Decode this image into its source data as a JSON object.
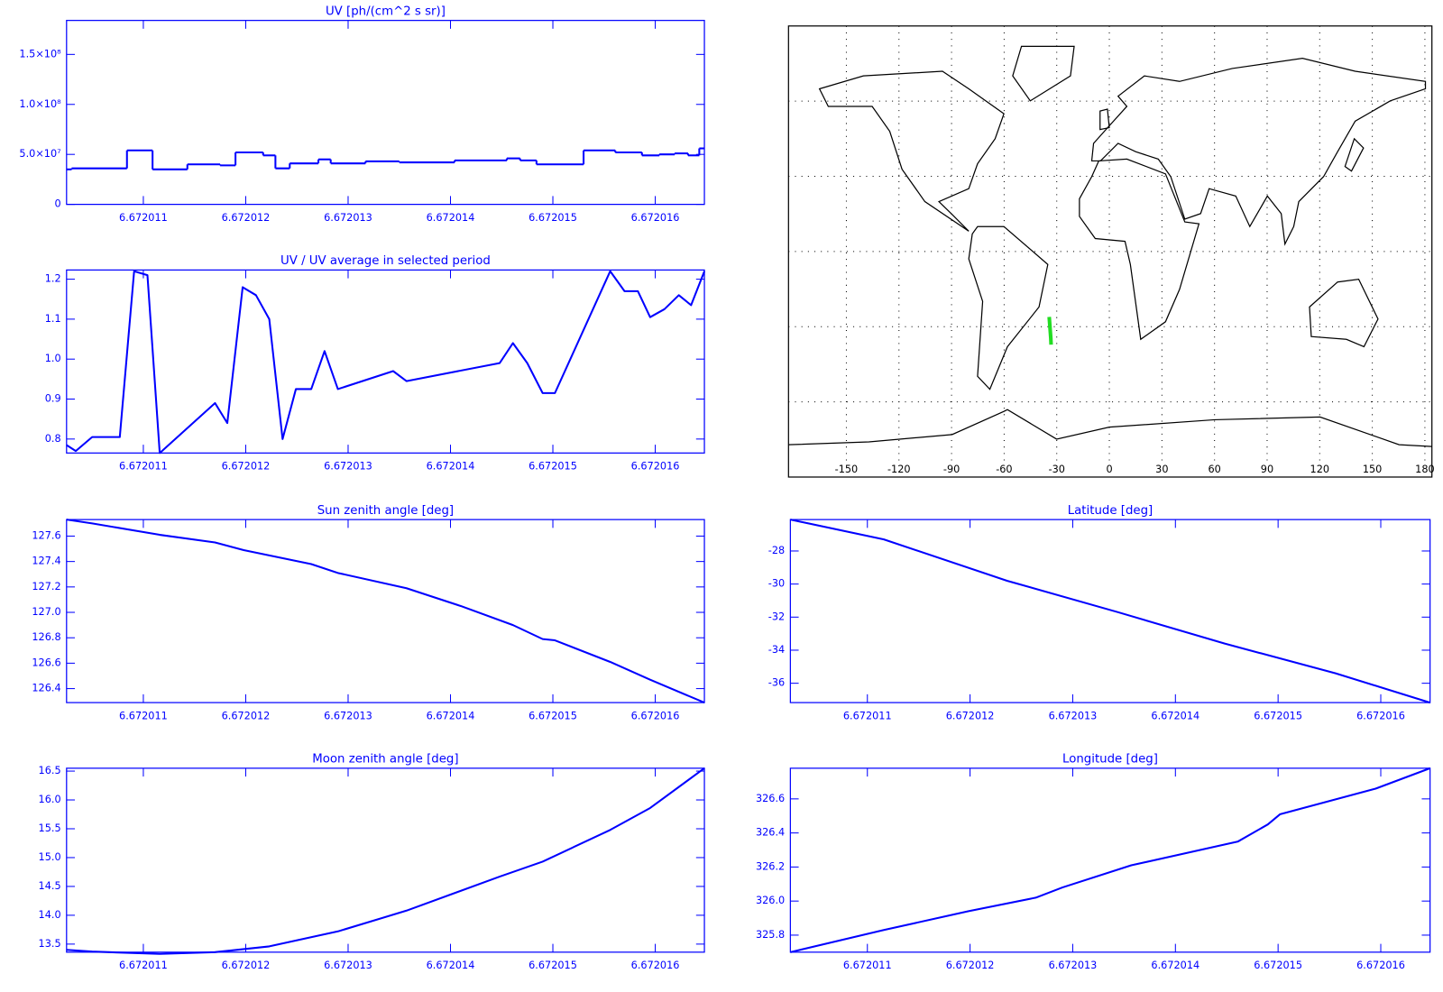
{
  "chart_data": [
    {
      "type": "step",
      "title": "UV [ph/(cm^2 s sr)]",
      "color": "#0000ff",
      "axis_color": "#0000ff",
      "x": [
        6.67201025,
        6.6720103,
        6.67201084,
        6.67201109,
        6.67201143,
        6.67201175,
        6.6720119,
        6.67201217,
        6.67201229,
        6.67201243,
        6.67201271,
        6.67201283,
        6.67201317,
        6.6720135,
        6.67201404,
        6.67201455,
        6.67201468,
        6.67201484,
        6.6720153,
        6.67201561,
        6.67201587,
        6.67201604,
        6.67201619,
        6.67201632,
        6.67201643
      ],
      "values": [
        35000000,
        36000000,
        54000000,
        35000000,
        40000000,
        39000000,
        52000000,
        49000000,
        36000000,
        41000000,
        45000000,
        41000000,
        43000000,
        42000000,
        44000000,
        46000000,
        44000000,
        40000000,
        54000000,
        52000000,
        49000000,
        50000000,
        51000000,
        49000000,
        56000000
      ],
      "xlim": [
        6.67201025,
        6.67201648
      ],
      "ylim": [
        0,
        184000000
      ],
      "xticks": [
        6.672011,
        6.672012,
        6.672013,
        6.672014,
        6.672015,
        6.672016
      ],
      "yticks": [
        0,
        {
          "value": 50000000,
          "label": "5.0×10⁷"
        },
        {
          "value": 100000000,
          "label": "1.0×10⁸"
        },
        {
          "value": 150000000,
          "label": "1.5×10⁸"
        }
      ]
    },
    {
      "type": "line",
      "title": "UV / UV average in selected period",
      "color": "#0000ff",
      "axis_color": "#0000ff",
      "x": [
        6.67201025,
        6.67201034,
        6.6720105,
        6.67201077,
        6.67201091,
        6.67201104,
        6.67201116,
        6.6720117,
        6.67201182,
        6.67201197,
        6.6720121,
        6.67201223,
        6.67201236,
        6.67201249,
        6.67201264,
        6.67201277,
        6.6720129,
        6.67201344,
        6.67201357,
        6.67201448,
        6.67201461,
        6.67201475,
        6.6720149,
        6.67201502,
        6.67201556,
        6.6720157,
        6.67201583,
        6.67201595,
        6.67201609,
        6.67201623,
        6.67201635,
        6.67201648
      ],
      "values": [
        0.785,
        0.77,
        0.805,
        0.805,
        1.22,
        1.21,
        0.765,
        0.89,
        0.84,
        1.18,
        1.16,
        1.1,
        0.8,
        0.925,
        0.925,
        1.02,
        0.925,
        0.97,
        0.945,
        0.99,
        1.04,
        0.99,
        0.915,
        0.915,
        1.22,
        1.17,
        1.17,
        1.105,
        1.125,
        1.16,
        1.135,
        1.22
      ],
      "xlim": [
        6.67201025,
        6.67201648
      ],
      "ylim": [
        0.765,
        1.223
      ],
      "xticks": [
        6.672011,
        6.672012,
        6.672013,
        6.672014,
        6.672015,
        6.672016
      ],
      "yticks": [
        0.8,
        0.9,
        {
          "value": 1,
          "label": "1.0"
        },
        1.1,
        1.2
      ]
    },
    {
      "type": "map",
      "color": "#22dd22",
      "axis_color": "#000000",
      "x": [
        -34.3,
        -34.0,
        -33.7,
        -33.4,
        -33.22
      ],
      "values": [
        -26.1,
        -28.9,
        -31.7,
        -34.5,
        -37.17
      ],
      "xlim": [
        -183,
        184
      ],
      "ylim": [
        -90,
        90
      ],
      "xticks": [
        -150,
        -120,
        -90,
        -60,
        -30,
        0,
        30,
        60,
        90,
        120,
        150,
        180
      ],
      "ygrid": [
        -60,
        -30,
        0,
        30,
        60
      ],
      "grid": true
    },
    {
      "type": "line",
      "title": "Sun zenith angle [deg]",
      "color": "#0000ff",
      "axis_color": "#0000ff",
      "x": [
        6.67201025,
        6.6720105,
        6.67201116,
        6.6720117,
        6.67201198,
        6.67201264,
        6.6720129,
        6.67201357,
        6.6720141,
        6.67201461,
        6.6720149,
        6.67201502,
        6.67201556,
        6.67201595,
        6.67201648
      ],
      "values": [
        127.73,
        127.7,
        127.61,
        127.55,
        127.49,
        127.38,
        127.31,
        127.19,
        127.05,
        126.9,
        126.79,
        126.78,
        126.61,
        126.47,
        126.29
      ],
      "xlim": [
        6.67201025,
        6.67201648
      ],
      "ylim": [
        126.29,
        127.73
      ],
      "xticks": [
        6.672011,
        6.672012,
        6.672013,
        6.672014,
        6.672015,
        6.672016
      ],
      "yticks": [
        126.4,
        126.6,
        126.8,
        {
          "value": 127,
          "label": "127.0"
        },
        127.2,
        127.4,
        127.6
      ]
    },
    {
      "type": "line",
      "title": "Latitude [deg]",
      "color": "#0000ff",
      "axis_color": "#0000ff",
      "x": [
        6.67201025,
        6.67201116,
        6.67201236,
        6.67201344,
        6.67201448,
        6.67201556,
        6.67201648
      ],
      "values": [
        -26.1,
        -27.3,
        -29.8,
        -31.7,
        -33.6,
        -35.4,
        -37.17
      ],
      "xlim": [
        6.67201025,
        6.67201648
      ],
      "ylim": [
        -37.17,
        -26.1
      ],
      "xticks": [
        6.672011,
        6.672012,
        6.672013,
        6.672014,
        6.672015,
        6.672016
      ],
      "yticks": [
        -36,
        -34,
        -32,
        -30,
        -28
      ]
    },
    {
      "type": "line",
      "title": "Moon zenith angle [deg]",
      "color": "#0000ff",
      "axis_color": "#0000ff",
      "x": [
        6.67201025,
        6.6720105,
        6.67201116,
        6.6720117,
        6.67201223,
        6.6720129,
        6.67201357,
        6.67201448,
        6.6720149,
        6.67201556,
        6.67201595,
        6.67201648
      ],
      "values": [
        13.4,
        13.37,
        13.33,
        13.36,
        13.46,
        13.72,
        14.08,
        14.67,
        14.93,
        15.48,
        15.86,
        16.55
      ],
      "xlim": [
        6.67201025,
        6.67201648
      ],
      "ylim": [
        13.36,
        16.55
      ],
      "xticks": [
        6.672011,
        6.672012,
        6.672013,
        6.672014,
        6.672015,
        6.672016
      ],
      "yticks": [
        13.5,
        {
          "value": 14,
          "label": "14.0"
        },
        14.5,
        {
          "value": 15,
          "label": "15.0"
        },
        15.5,
        {
          "value": 16,
          "label": "16.0"
        },
        16.5
      ]
    },
    {
      "type": "line",
      "title": "Longitude [deg]",
      "color": "#0000ff",
      "axis_color": "#0000ff",
      "x": [
        6.67201025,
        6.67201116,
        6.67201198,
        6.67201264,
        6.6720129,
        6.67201357,
        6.67201461,
        6.6720149,
        6.67201502,
        6.67201595,
        6.67201648
      ],
      "values": [
        325.7,
        325.83,
        325.94,
        326.02,
        326.08,
        326.21,
        326.35,
        326.45,
        326.51,
        326.66,
        326.78
      ],
      "xlim": [
        6.67201025,
        6.67201648
      ],
      "ylim": [
        325.7,
        326.78
      ],
      "xticks": [
        6.672011,
        6.672012,
        6.672013,
        6.672014,
        6.672015,
        6.672016
      ],
      "yticks": [
        325.8,
        {
          "value": 326,
          "label": "326.0"
        },
        326.2,
        326.4,
        326.6
      ]
    }
  ]
}
